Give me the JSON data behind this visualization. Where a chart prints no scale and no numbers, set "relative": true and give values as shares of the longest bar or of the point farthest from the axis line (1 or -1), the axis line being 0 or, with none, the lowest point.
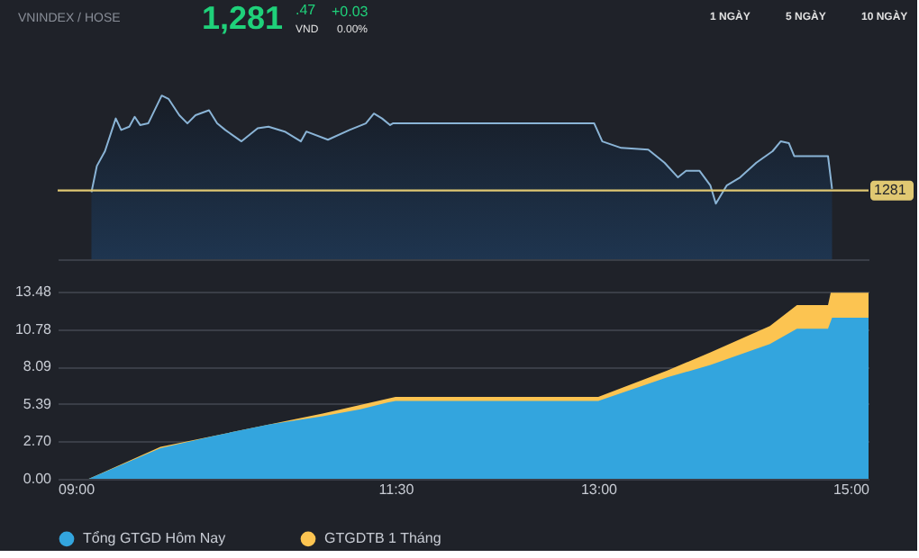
{
  "chart_data": [
    {
      "type": "area",
      "relative": true,
      "title": "VNINDEX / HOSE",
      "annotations": [
        "1,281",
        ".47",
        "VND",
        "+0.03",
        "0.00%",
        "1 NGÀY",
        "5 NGÀY",
        "10 NGÀY",
        "1281"
      ],
      "xlim": [
        9,
        15
      ],
      "tick_labels": false,
      "grid": false,
      "legend": false,
      "ref_lines": [
        {
          "axis": "y",
          "value": 0.42,
          "color": "#e0c872"
        }
      ],
      "series": [
        {
          "color": "#8ab4d6",
          "x": [
            9.25,
            9.29,
            9.35,
            9.43,
            9.47,
            9.53,
            9.57,
            9.61,
            9.67,
            9.77,
            9.82,
            9.9,
            9.96,
            10.02,
            10.12,
            10.18,
            10.24,
            10.36,
            10.48,
            10.56,
            10.68,
            10.8,
            10.84,
            11.0,
            11.16,
            11.28,
            11.34,
            11.4,
            11.46,
            11.48,
            12.97,
            13.03,
            13.17,
            13.37,
            13.49,
            13.59,
            13.65,
            13.75,
            13.83,
            13.87,
            13.95,
            14.05,
            14.17,
            14.29,
            14.35,
            14.41,
            14.45,
            14.7,
            14.73
          ],
          "values": [
            0.41,
            0.57,
            0.66,
            0.86,
            0.79,
            0.81,
            0.87,
            0.82,
            0.83,
            1,
            0.98,
            0.88,
            0.83,
            0.88,
            0.91,
            0.83,
            0.79,
            0.72,
            0.8,
            0.81,
            0.78,
            0.72,
            0.78,
            0.73,
            0.79,
            0.83,
            0.89,
            0.86,
            0.82,
            0.83,
            0.83,
            0.72,
            0.68,
            0.67,
            0.59,
            0.5,
            0.54,
            0.54,
            0.45,
            0.34,
            0.45,
            0.5,
            0.59,
            0.66,
            0.72,
            0.71,
            0.63,
            0.63,
            0.43
          ]
        }
      ]
    },
    {
      "type": "area",
      "xlim": [
        9,
        15
      ],
      "xticks": [
        {
          "value": 9,
          "label": "09:00"
        },
        {
          "value": 11.5,
          "label": "11:30"
        },
        {
          "value": 13,
          "label": "13:00"
        },
        {
          "value": 15,
          "label": "15:00"
        }
      ],
      "ylim": [
        0,
        13.48
      ],
      "yticks": [
        {
          "value": 0,
          "label": "0.00"
        },
        {
          "value": 2.7,
          "label": "2.70"
        },
        {
          "value": 5.39,
          "label": "5.39"
        },
        {
          "value": 8.09,
          "label": "8.09"
        },
        {
          "value": 10.78,
          "label": "10.78"
        },
        {
          "value": 13.48,
          "label": "13.48"
        }
      ],
      "grid": "y",
      "legend": "bottom",
      "series": [
        {
          "name": "Tổng GTGD Hôm Nay",
          "color": "#33a5de",
          "x": [
            9,
            9.23,
            9.76,
            10.16,
            10.56,
            10.96,
            11.24,
            11.44,
            11.5,
            13.0,
            13.51,
            13.83,
            14.27,
            14.47,
            14.7,
            14.73,
            15
          ],
          "values": [
            0,
            0,
            2.2,
            3.1,
            3.9,
            4.5,
            5,
            5.5,
            5.6,
            5.6,
            7.3,
            8.2,
            9.7,
            10.8,
            10.8,
            11.6,
            11.6
          ]
        },
        {
          "name": "GTGDTB 1 Tháng",
          "color": "#fcc451",
          "x": [
            9,
            9.23,
            9.76,
            10.96,
            11.5,
            13.0,
            13.51,
            13.83,
            14.27,
            14.47,
            14.7,
            14.72,
            15
          ],
          "values": [
            0,
            0,
            2.3,
            4.7,
            5.9,
            5.9,
            7.8,
            9.1,
            11,
            12.5,
            12.5,
            13.4,
            13.4
          ]
        }
      ]
    }
  ]
}
